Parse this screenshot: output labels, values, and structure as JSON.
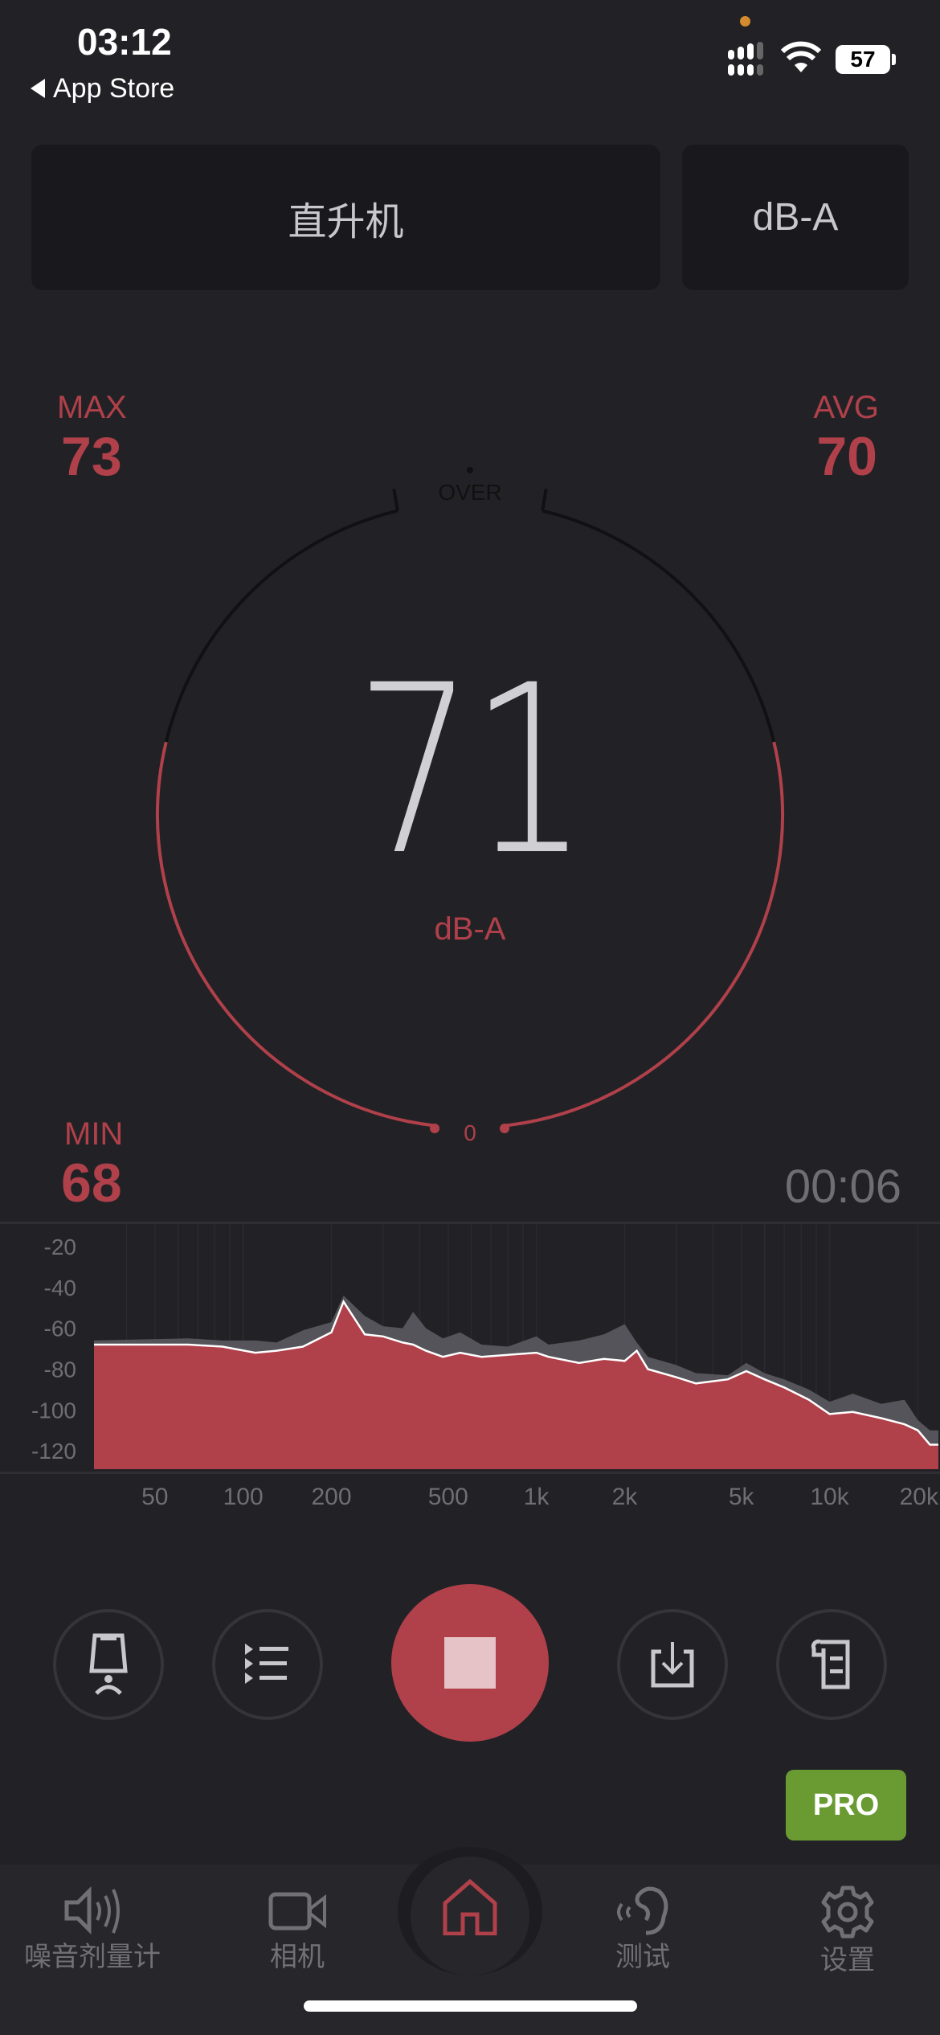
{
  "status_bar": {
    "time": "03:12",
    "back_label": "App Store",
    "battery": "57"
  },
  "header": {
    "profile": "直升机",
    "weighting": "dB-A"
  },
  "stats": {
    "max_label": "MAX",
    "max_value": "73",
    "avg_label": "AVG",
    "avg_value": "70",
    "min_label": "MIN",
    "min_value": "68"
  },
  "gauge": {
    "over_label": "OVER",
    "zero_label": "0",
    "reading": "71",
    "unit": "dB-A",
    "timer": "00:06"
  },
  "colors": {
    "accent": "#b0404a",
    "background": "#222226",
    "pro": "#6a9b33"
  },
  "chart_data": {
    "type": "area",
    "x_scale": "log",
    "xlim": [
      31,
      23500
    ],
    "ylim": [
      -129,
      -9
    ],
    "x_ticks": [
      "50",
      "100",
      "200",
      "500",
      "1k",
      "2k",
      "5k",
      "10k",
      "20k"
    ],
    "x_tick_values": [
      50,
      100,
      200,
      500,
      1000,
      2000,
      5000,
      10000,
      20000
    ],
    "y_ticks": [
      "-20",
      "-40",
      "-60",
      "-80",
      "-100",
      "-120"
    ],
    "y_tick_values": [
      -20,
      -40,
      -60,
      -80,
      -100,
      -120
    ],
    "grid": true,
    "series": [
      {
        "role": "peak",
        "color": "#54545a",
        "x": [
          31,
          65,
          85,
          110,
          130,
          160,
          200,
          220,
          260,
          300,
          350,
          380,
          420,
          480,
          550,
          650,
          800,
          1000,
          1100,
          1400,
          1700,
          2000,
          2200,
          2400,
          3000,
          3500,
          4500,
          5200,
          6000,
          7000,
          8500,
          10000,
          12000,
          15000,
          18000,
          20000,
          22000,
          23500
        ],
        "y": [
          -66,
          -65,
          -66,
          -66,
          -67,
          -61,
          -57,
          -44,
          -54,
          -59,
          -60,
          -52,
          -60,
          -65,
          -62,
          -68,
          -69,
          -64,
          -68,
          -66,
          -63,
          -58,
          -67,
          -74,
          -78,
          -82,
          -83,
          -77,
          -82,
          -85,
          -90,
          -96,
          -92,
          -97,
          -95,
          -105,
          -110,
          -110
        ]
      },
      {
        "role": "current",
        "color": "#b0404a",
        "x": [
          31,
          65,
          85,
          110,
          130,
          160,
          200,
          220,
          260,
          300,
          350,
          380,
          420,
          480,
          550,
          650,
          800,
          1000,
          1100,
          1400,
          1700,
          2000,
          2200,
          2400,
          3000,
          3500,
          4500,
          5200,
          6000,
          7000,
          8500,
          10000,
          12000,
          15000,
          18000,
          20000,
          22000,
          23500
        ],
        "y": [
          -68,
          -68,
          -69,
          -72,
          -71,
          -69,
          -62,
          -47,
          -63,
          -64,
          -67,
          -68,
          -71,
          -74,
          -72,
          -74,
          -73,
          -72,
          -74,
          -77,
          -75,
          -76,
          -71,
          -80,
          -84,
          -87,
          -85,
          -81,
          -85,
          -89,
          -95,
          -102,
          -101,
          -104,
          -107,
          -110,
          -117,
          -117
        ]
      }
    ]
  },
  "controls": {
    "pro_label": "PRO"
  },
  "tabs": [
    {
      "label": "噪音剂量计"
    },
    {
      "label": "相机"
    },
    {
      "label": ""
    },
    {
      "label": "测试"
    },
    {
      "label": "设置"
    }
  ]
}
